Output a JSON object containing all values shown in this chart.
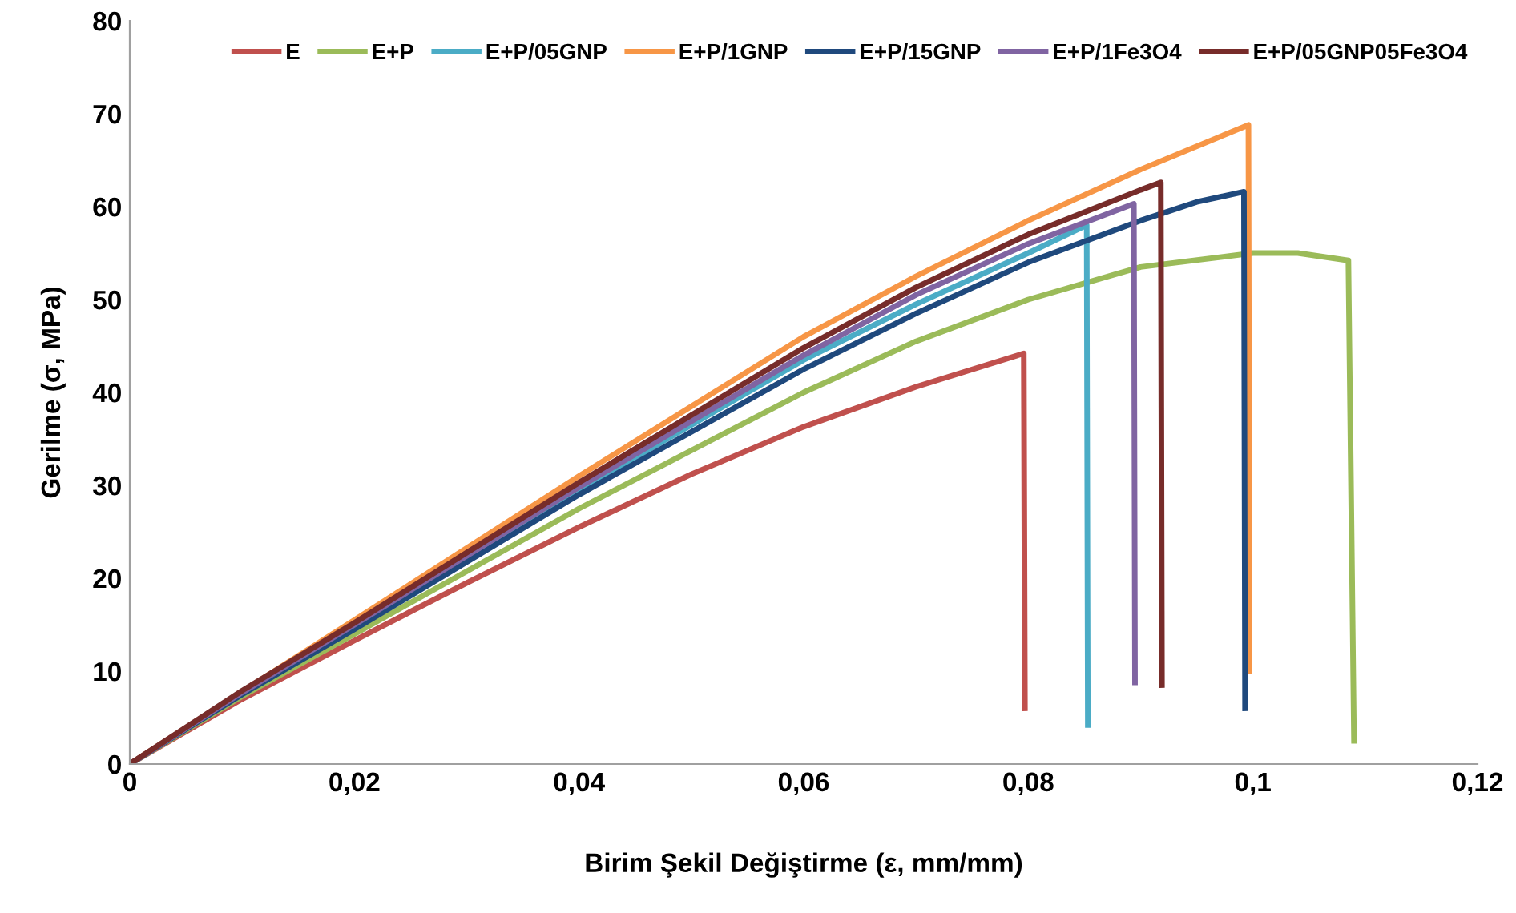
{
  "chart_data": {
    "type": "line",
    "xlabel": "Birim Şekil Değiştirme (ε, mm/mm)",
    "ylabel": "Gerilme (σ, MPa)",
    "xlim": [
      0,
      0.12
    ],
    "ylim": [
      0,
      80
    ],
    "xticks": [
      {
        "value": 0,
        "label": "0"
      },
      {
        "value": 0.02,
        "label": "0,02"
      },
      {
        "value": 0.04,
        "label": "0,04"
      },
      {
        "value": 0.06,
        "label": "0,06"
      },
      {
        "value": 0.08,
        "label": "0,08"
      },
      {
        "value": 0.1,
        "label": "0,1"
      },
      {
        "value": 0.12,
        "label": "0,12"
      }
    ],
    "yticks": [
      0,
      10,
      20,
      30,
      40,
      50,
      60,
      70,
      80
    ],
    "grid": false,
    "legend": "top",
    "marker": "none",
    "line_style": "solid",
    "series": [
      {
        "name": "E",
        "color": "#c0504d",
        "x": [
          0,
          0.01,
          0.02,
          0.03,
          0.04,
          0.05,
          0.06,
          0.07,
          0.0796,
          0.0797
        ],
        "values": [
          0,
          7,
          13.3,
          19.5,
          25.5,
          31.2,
          36.3,
          40.6,
          44.2,
          6
        ]
      },
      {
        "name": "E+P",
        "color": "#9bbb59",
        "x": [
          0,
          0.01,
          0.02,
          0.04,
          0.06,
          0.07,
          0.08,
          0.09,
          0.1,
          0.104,
          0.1085,
          0.109
        ],
        "values": [
          0,
          7.3,
          14,
          27.5,
          40,
          45.5,
          50,
          53.5,
          55,
          55,
          54.2,
          2.5
        ]
      },
      {
        "name": "E+P/05GNP",
        "color": "#4bacc6",
        "x": [
          0,
          0.01,
          0.02,
          0.04,
          0.06,
          0.07,
          0.08,
          0.0852,
          0.0853
        ],
        "values": [
          0,
          7.6,
          14.8,
          29.5,
          43.5,
          49.5,
          55,
          58,
          4.2
        ]
      },
      {
        "name": "E+P/1GNP",
        "color": "#f79646",
        "x": [
          0,
          0.01,
          0.02,
          0.04,
          0.06,
          0.07,
          0.08,
          0.09,
          0.0996,
          0.0997
        ],
        "values": [
          0,
          7.8,
          15.5,
          31,
          46,
          52.5,
          58.5,
          64,
          68.8,
          10
        ]
      },
      {
        "name": "E+P/15GNP",
        "color": "#1f497d",
        "x": [
          0,
          0.01,
          0.02,
          0.04,
          0.06,
          0.07,
          0.08,
          0.09,
          0.095,
          0.0992,
          0.0993
        ],
        "values": [
          0,
          7.5,
          14.5,
          29,
          42.5,
          48.5,
          54,
          58.5,
          60.5,
          61.6,
          6
        ]
      },
      {
        "name": "E+P/1Fe3O4",
        "color": "#8064a2",
        "x": [
          0,
          0.01,
          0.02,
          0.04,
          0.06,
          0.07,
          0.08,
          0.0894,
          0.0895
        ],
        "values": [
          0,
          7.7,
          15,
          29.8,
          44,
          50.5,
          56,
          60.3,
          8.8
        ]
      },
      {
        "name": "E+P/05GNP05Fe3O4",
        "color": "#772c2a",
        "x": [
          0,
          0.01,
          0.02,
          0.04,
          0.06,
          0.07,
          0.08,
          0.09,
          0.0918,
          0.0919
        ],
        "values": [
          0,
          7.9,
          15.2,
          30.3,
          44.8,
          51.3,
          57,
          61.8,
          62.6,
          8.5
        ]
      }
    ]
  }
}
